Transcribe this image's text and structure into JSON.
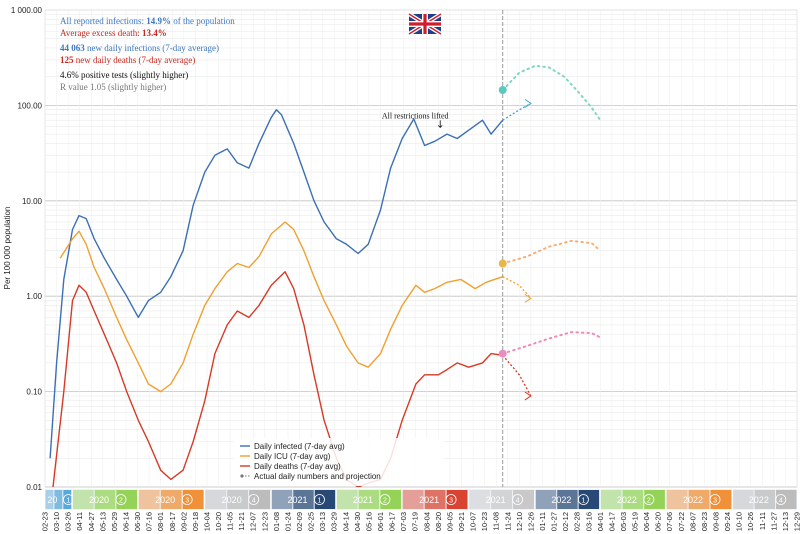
{
  "chart_data": {
    "type": "line",
    "ylabel": "Per 100 000 population",
    "yscale": "log",
    "ylim": [
      0.01,
      1000
    ],
    "grid": true,
    "legend_position": "bottom-center",
    "ytick_labels": [
      "1 000.00",
      "100.00",
      "10.00",
      "1.00",
      "0.10",
      "0.01"
    ],
    "ytick_values": [
      1000,
      100,
      10,
      1,
      0.1,
      0.01
    ],
    "xlim": [
      "2020-02-23",
      "2022-12-29"
    ],
    "today": "2021-11-17",
    "xtick_labels": [
      "02-23",
      "03-10",
      "03-26",
      "04-11",
      "04-27",
      "05-13",
      "05-29",
      "06-14",
      "06-30",
      "07-16",
      "08-01",
      "08-17",
      "09-02",
      "09-18",
      "10-04",
      "10-20",
      "11-05",
      "11-21",
      "12-07",
      "12-23",
      "01-08",
      "01-24",
      "02-09",
      "02-25",
      "03-13",
      "03-29",
      "04-14",
      "04-30",
      "05-16",
      "06-01",
      "06-17",
      "07-03",
      "07-19",
      "08-04",
      "08-20",
      "09-05",
      "09-21",
      "10-07",
      "10-23",
      "11-08",
      "11-24",
      "12-10",
      "12-26",
      "01-11",
      "01-27",
      "02-12",
      "02-28",
      "03-16",
      "04-01",
      "04-17",
      "05-03",
      "05-19",
      "06-04",
      "06-20",
      "07-06",
      "07-22",
      "08-07",
      "08-23",
      "09-08",
      "09-24",
      "10-10",
      "10-26",
      "11-11",
      "11-27",
      "12-13",
      "12-29"
    ],
    "quarters": [
      {
        "year": "20",
        "q": "1",
        "start": "2020-02-23",
        "end": "2020-03-31",
        "color": "#4fa3d9"
      },
      {
        "year": "2020",
        "q": "2",
        "start": "2020-04-01",
        "end": "2020-06-30",
        "color": "#8fd14f"
      },
      {
        "year": "2020",
        "q": "3",
        "start": "2020-07-01",
        "end": "2020-09-30",
        "color": "#ef8a2e"
      },
      {
        "year": "2020",
        "q": "4",
        "start": "2020-10-01",
        "end": "2020-12-31",
        "color": "#b8b8b8"
      },
      {
        "year": "2021",
        "q": "1",
        "start": "2021-01-01",
        "end": "2021-03-31",
        "color": "#1c3f6e"
      },
      {
        "year": "2021",
        "q": "2",
        "start": "2021-04-01",
        "end": "2021-06-30",
        "color": "#8fd14f"
      },
      {
        "year": "2021",
        "q": "3",
        "start": "2021-07-01",
        "end": "2021-09-30",
        "color": "#d63a26"
      },
      {
        "year": "2021",
        "q": "4",
        "start": "2021-10-01",
        "end": "2021-12-31",
        "color": "#c6c6c6"
      },
      {
        "year": "2022",
        "q": "1",
        "start": "2022-01-01",
        "end": "2022-03-31",
        "color": "#1c3f6e"
      },
      {
        "year": "2022",
        "q": "2",
        "start": "2022-04-01",
        "end": "2022-06-30",
        "color": "#8fd14f"
      },
      {
        "year": "2022",
        "q": "3",
        "start": "2022-07-01",
        "end": "2022-09-30",
        "color": "#ef8a2e"
      },
      {
        "year": "2022",
        "q": "4",
        "start": "2022-10-01",
        "end": "2022-12-29",
        "color": "#b8b8b8"
      }
    ],
    "series": [
      {
        "name": "Daily infected (7-day avg)",
        "color": "#3b6fb6",
        "x": [
          "2020-03-01",
          "2020-03-10",
          "2020-03-20",
          "2020-04-01",
          "2020-04-10",
          "2020-04-20",
          "2020-05-01",
          "2020-05-15",
          "2020-06-01",
          "2020-06-15",
          "2020-07-01",
          "2020-07-15",
          "2020-08-01",
          "2020-08-15",
          "2020-09-01",
          "2020-09-15",
          "2020-10-01",
          "2020-10-15",
          "2020-11-01",
          "2020-11-15",
          "2020-12-01",
          "2020-12-15",
          "2021-01-01",
          "2021-01-08",
          "2021-01-15",
          "2021-02-01",
          "2021-02-15",
          "2021-03-01",
          "2021-03-15",
          "2021-04-01",
          "2021-04-15",
          "2021-05-01",
          "2021-05-15",
          "2021-06-01",
          "2021-06-15",
          "2021-07-01",
          "2021-07-17",
          "2021-08-01",
          "2021-08-15",
          "2021-09-01",
          "2021-09-15",
          "2021-10-01",
          "2021-10-20",
          "2021-11-01",
          "2021-11-17"
        ],
        "y": [
          0.02,
          0.2,
          1.5,
          5,
          7,
          6.5,
          4,
          2.5,
          1.5,
          1,
          0.6,
          0.9,
          1.1,
          1.6,
          3,
          9,
          20,
          30,
          35,
          25,
          22,
          40,
          75,
          90,
          80,
          40,
          20,
          10,
          6,
          4,
          3.5,
          2.8,
          3.5,
          8,
          22,
          45,
          72,
          38,
          42,
          50,
          45,
          55,
          70,
          50,
          70
        ]
      },
      {
        "name": "Daily ICU (7-day avg)",
        "color": "#f0a030",
        "x": [
          "2020-03-15",
          "2020-04-01",
          "2020-04-10",
          "2020-04-20",
          "2020-05-01",
          "2020-05-15",
          "2020-06-01",
          "2020-06-15",
          "2020-07-01",
          "2020-07-15",
          "2020-08-01",
          "2020-08-15",
          "2020-09-01",
          "2020-09-15",
          "2020-10-01",
          "2020-10-15",
          "2020-11-01",
          "2020-11-15",
          "2020-12-01",
          "2020-12-15",
          "2021-01-01",
          "2021-01-20",
          "2021-02-01",
          "2021-02-15",
          "2021-03-01",
          "2021-03-15",
          "2021-04-01",
          "2021-04-15",
          "2021-05-01",
          "2021-05-15",
          "2021-06-01",
          "2021-06-15",
          "2021-07-01",
          "2021-07-20",
          "2021-08-01",
          "2021-08-15",
          "2021-09-01",
          "2021-09-20",
          "2021-10-10",
          "2021-10-25",
          "2021-11-17"
        ],
        "y": [
          2.5,
          4,
          4.8,
          3.5,
          2,
          1.2,
          0.6,
          0.35,
          0.2,
          0.12,
          0.1,
          0.12,
          0.2,
          0.4,
          0.8,
          1.2,
          1.8,
          2.2,
          2,
          2.6,
          4.5,
          6,
          5,
          3,
          1.6,
          0.9,
          0.5,
          0.3,
          0.2,
          0.18,
          0.25,
          0.45,
          0.8,
          1.3,
          1.1,
          1.2,
          1.4,
          1.5,
          1.2,
          1.4,
          1.6
        ]
      },
      {
        "name": "Daily deaths (7-day avg)",
        "color": "#d63a26",
        "x": [
          "2020-03-05",
          "2020-03-20",
          "2020-04-01",
          "2020-04-10",
          "2020-04-20",
          "2020-05-01",
          "2020-05-15",
          "2020-06-01",
          "2020-06-15",
          "2020-07-01",
          "2020-07-15",
          "2020-08-01",
          "2020-08-15",
          "2020-09-01",
          "2020-09-15",
          "2020-10-01",
          "2020-10-15",
          "2020-11-01",
          "2020-11-15",
          "2020-12-01",
          "2020-12-15",
          "2021-01-01",
          "2021-01-20",
          "2021-02-01",
          "2021-02-15",
          "2021-03-01",
          "2021-03-15",
          "2021-04-01",
          "2021-04-15",
          "2021-05-01",
          "2021-05-15",
          "2021-06-01",
          "2021-06-15",
          "2021-07-01",
          "2021-07-20",
          "2021-08-01",
          "2021-08-20",
          "2021-09-01",
          "2021-09-15",
          "2021-10-01",
          "2021-10-20",
          "2021-11-01",
          "2021-11-17"
        ],
        "y": [
          0.01,
          0.1,
          0.9,
          1.3,
          1.1,
          0.7,
          0.4,
          0.2,
          0.1,
          0.05,
          0.03,
          0.015,
          0.012,
          0.015,
          0.03,
          0.08,
          0.25,
          0.5,
          0.7,
          0.6,
          0.8,
          1.3,
          1.8,
          1.2,
          0.5,
          0.15,
          0.05,
          0.02,
          0.012,
          0.01,
          0.011,
          0.012,
          0.02,
          0.05,
          0.12,
          0.15,
          0.15,
          0.17,
          0.2,
          0.18,
          0.2,
          0.25,
          0.24
        ]
      }
    ],
    "projections": [
      {
        "series": "Daily infected (7-day avg)",
        "color": "#3aa6c8",
        "x": [
          "2021-11-17",
          "2021-12-10",
          "2021-12-26"
        ],
        "y": [
          70,
          90,
          105
        ]
      },
      {
        "series": "Daily ICU (7-day avg)",
        "color": "#f0a030",
        "x": [
          "2021-11-17",
          "2021-12-10",
          "2021-12-26"
        ],
        "y": [
          1.6,
          1.3,
          0.95
        ]
      },
      {
        "series": "Daily deaths (7-day avg)",
        "color": "#d63a26",
        "x": [
          "2021-11-17",
          "2021-12-10",
          "2021-12-26"
        ],
        "y": [
          0.24,
          0.15,
          0.09
        ]
      }
    ],
    "scenario_dots": [
      {
        "color": "#7fd6c4",
        "marker": "#5ec7c0",
        "x": [
          "2021-11-17",
          "2021-12-10",
          "2022-01-01",
          "2022-01-20",
          "2022-02-10",
          "2022-03-01",
          "2022-03-20",
          "2022-04-01"
        ],
        "y": [
          145,
          220,
          260,
          250,
          200,
          140,
          95,
          70
        ]
      },
      {
        "color": "#f3b07a",
        "marker": "#e8b74a",
        "x": [
          "2021-11-17",
          "2021-12-20",
          "2022-01-20",
          "2022-02-20",
          "2022-03-20",
          "2022-04-01"
        ],
        "y": [
          2.2,
          2.6,
          3.3,
          3.8,
          3.6,
          3
        ]
      },
      {
        "color": "#f08ab8",
        "marker": "#e98fbf",
        "x": [
          "2021-11-17",
          "2021-12-20",
          "2022-01-20",
          "2022-02-20",
          "2022-03-20",
          "2022-04-01"
        ],
        "y": [
          0.25,
          0.3,
          0.36,
          0.42,
          0.41,
          0.37
        ]
      }
    ],
    "annotations": [
      {
        "text": "All restrictions lifted",
        "x": "2021-07-19",
        "y": 100
      }
    ],
    "legend": [
      {
        "label": "Daily infected (7-day avg)",
        "color": "#3b6fb6"
      },
      {
        "label": "Daily ICU (7-day avg)",
        "color": "#f0a030"
      },
      {
        "label": "Daily deaths (7-day avg)",
        "color": "#d63a26"
      },
      {
        "label": "Actual daily numbers and projection",
        "color": "#777777"
      }
    ],
    "info": {
      "line1_text": "All reported infections: ",
      "line1_value": "14.9%",
      "line1_suffix": " of the population",
      "line2_text": "Average excess death: ",
      "line2_value": "13.4%",
      "line3_value": "44 063",
      "line3_text": " new daily infections (7-day average)",
      "line4_value": "125",
      "line4_text": " new daily deaths (7-day average)",
      "line5_text": "4.6% positive tests (slightly higher)",
      "line6_text": "R value 1.05 (slightly higher)"
    },
    "colors": {
      "info_blue": "#3e78c0",
      "info_red": "#c8281e",
      "info_black": "#111111",
      "info_gray": "#777777"
    }
  },
  "flag": {
    "icon": "union-jack-flag-icon"
  }
}
